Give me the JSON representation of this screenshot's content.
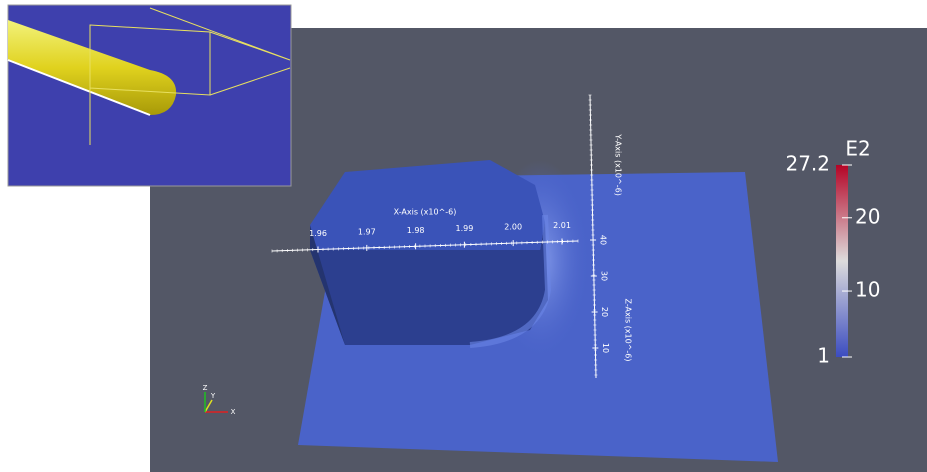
{
  "x_axis": {
    "title": "X-Axis (x10^-6)",
    "ticks": [
      1.96,
      1.97,
      1.98,
      1.99,
      {
        "value": 2,
        "label": "2.00"
      },
      2.01
    ]
  },
  "z_axis": {
    "title": "Z-Axis (x10^-6)",
    "ticks": [
      10,
      20,
      30,
      40
    ]
  },
  "y_axis": {
    "title": "Y-Axis (x10^-6)"
  },
  "colorbar": {
    "title": "E2",
    "max": 27.2,
    "min": 1,
    "ticks": [
      20,
      10
    ]
  },
  "triad": {
    "x": "X",
    "y": "Y",
    "z": "Z"
  }
}
